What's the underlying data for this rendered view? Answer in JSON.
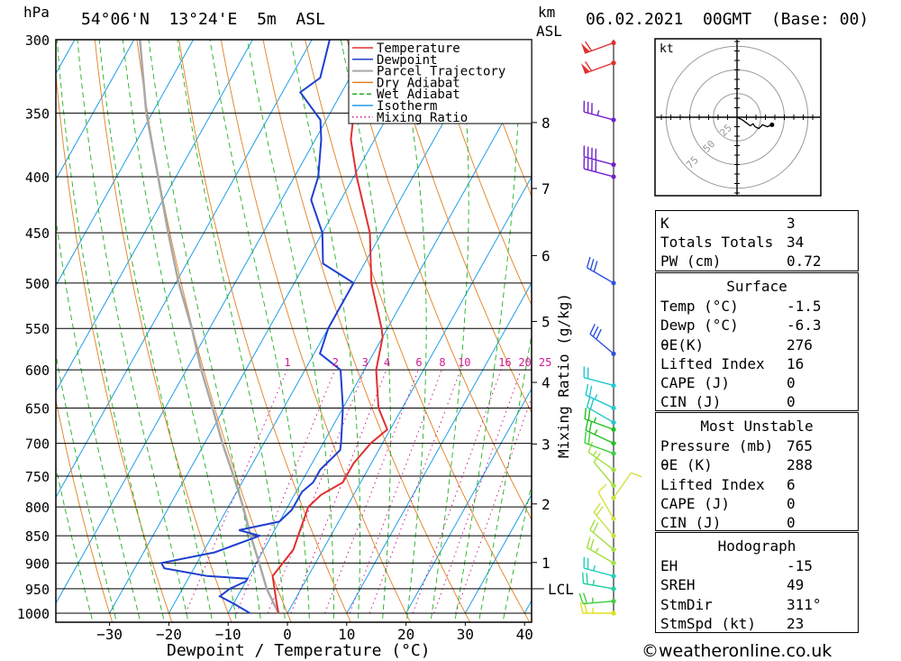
{
  "header": {
    "hpa_label": "hPa",
    "location": "54°06'N  13°24'E  5m  ASL",
    "km_label": "km",
    "asl_label": "ASL",
    "datetime": "06.02.2021  00GMT  (Base: 00)"
  },
  "chart_data": {
    "type": "line",
    "xlabel": "Dewpoint / Temperature (°C)",
    "ylabel": "hPa",
    "right_axis_label": "Mixing Ratio (g/kg)",
    "x_ticks": [
      -30,
      -20,
      -10,
      0,
      10,
      20,
      30,
      40
    ],
    "x_tick_labels": [
      "-30",
      "-20",
      "-10",
      "0",
      "10",
      "20",
      "30",
      "40"
    ],
    "pressure_levels": [
      300,
      350,
      400,
      450,
      500,
      550,
      600,
      650,
      700,
      750,
      800,
      850,
      900,
      950,
      1000
    ],
    "pressure_labels": [
      "300",
      "350",
      "400",
      "450",
      "500",
      "550",
      "600",
      "650",
      "700",
      "750",
      "800",
      "850",
      "900",
      "950",
      "1000"
    ],
    "height_km": [
      {
        "km": "8",
        "p": 357
      },
      {
        "km": "7",
        "p": 410
      },
      {
        "km": "6",
        "p": 472
      },
      {
        "km": "5",
        "p": 542
      },
      {
        "km": "4",
        "p": 616
      },
      {
        "km": "3",
        "p": 701
      },
      {
        "km": "2",
        "p": 795
      },
      {
        "km": "1",
        "p": 899
      }
    ],
    "lcl": {
      "label": "LCL",
      "p": 950
    },
    "mixing_ratio_labels": [
      "1",
      "2",
      "3",
      "4",
      "6",
      "8",
      "10",
      "16",
      "20",
      "25"
    ],
    "mixing_ratio_values": [
      1,
      2,
      3,
      4,
      6,
      8,
      10,
      16,
      20,
      25
    ],
    "legend": [
      {
        "name": "Temperature",
        "color": "#e03030"
      },
      {
        "name": "Dewpoint",
        "color": "#1f3fd0"
      },
      {
        "name": "Parcel Trajectory",
        "color": "#a8a8a8"
      },
      {
        "name": "Dry Adiabat",
        "color": "#e08020"
      },
      {
        "name": "Wet Adiabat",
        "color": "#20b020"
      },
      {
        "name": "Isotherm",
        "color": "#1e9ee8"
      },
      {
        "name": "Mixing Ratio",
        "color": "#d01890"
      }
    ],
    "series": [
      {
        "name": "Temperature",
        "points": [
          [
            1000,
            -1.5
          ],
          [
            975,
            -3
          ],
          [
            950,
            -4.5
          ],
          [
            925,
            -6
          ],
          [
            900,
            -5.5
          ],
          [
            875,
            -5
          ],
          [
            850,
            -5.5
          ],
          [
            825,
            -6
          ],
          [
            800,
            -6.5
          ],
          [
            780,
            -5.5
          ],
          [
            760,
            -3
          ],
          [
            730,
            -3
          ],
          [
            700,
            -2
          ],
          [
            680,
            -0.5
          ],
          [
            650,
            -4
          ],
          [
            600,
            -8
          ],
          [
            560,
            -10
          ],
          [
            550,
            -11
          ],
          [
            500,
            -17
          ],
          [
            450,
            -22
          ],
          [
            400,
            -29.5
          ],
          [
            370,
            -34
          ],
          [
            350,
            -36
          ],
          [
            330,
            -38
          ],
          [
            300,
            -42
          ]
        ]
      },
      {
        "name": "Dewpoint",
        "points": [
          [
            1000,
            -6.3
          ],
          [
            980,
            -10
          ],
          [
            975,
            -11
          ],
          [
            965,
            -13
          ],
          [
            950,
            -12
          ],
          [
            935,
            -10
          ],
          [
            930,
            -10
          ],
          [
            925,
            -17
          ],
          [
            910,
            -25
          ],
          [
            900,
            -26
          ],
          [
            880,
            -18
          ],
          [
            860,
            -14
          ],
          [
            850,
            -12
          ],
          [
            840,
            -16
          ],
          [
            825,
            -10
          ],
          [
            805,
            -9
          ],
          [
            790,
            -9
          ],
          [
            775,
            -9
          ],
          [
            760,
            -8
          ],
          [
            740,
            -8
          ],
          [
            720,
            -7
          ],
          [
            710,
            -6.5
          ],
          [
            700,
            -7
          ],
          [
            650,
            -10
          ],
          [
            600,
            -14
          ],
          [
            580,
            -19
          ],
          [
            550,
            -20
          ],
          [
            500,
            -20
          ],
          [
            480,
            -27
          ],
          [
            450,
            -30
          ],
          [
            420,
            -35
          ],
          [
            400,
            -36
          ],
          [
            370,
            -39
          ],
          [
            355,
            -41
          ],
          [
            335,
            -47
          ],
          [
            325,
            -45
          ],
          [
            300,
            -47
          ]
        ]
      },
      {
        "name": "Parcel Trajectory",
        "points": [
          [
            1000,
            -1.5
          ],
          [
            950,
            -5.8
          ],
          [
            900,
            -9.5
          ],
          [
            850,
            -13.5
          ],
          [
            800,
            -17.5
          ],
          [
            750,
            -22
          ],
          [
            700,
            -27
          ],
          [
            650,
            -32
          ],
          [
            600,
            -37.5
          ],
          [
            550,
            -43
          ],
          [
            500,
            -49.5
          ],
          [
            450,
            -56
          ],
          [
            400,
            -63
          ],
          [
            350,
            -71
          ],
          [
            300,
            -79
          ]
        ]
      }
    ],
    "wind_barbs": [
      {
        "p": 1000,
        "dir": 270,
        "kt": 25,
        "color": "#e0e020"
      },
      {
        "p": 975,
        "dir": 265,
        "kt": 25,
        "color": "#40d040"
      },
      {
        "p": 950,
        "dir": 280,
        "kt": 25,
        "color": "#20d0a0"
      },
      {
        "p": 925,
        "dir": 285,
        "kt": 25,
        "color": "#20d0c0"
      },
      {
        "p": 900,
        "dir": 300,
        "kt": 25,
        "color": "#a0e040"
      },
      {
        "p": 875,
        "dir": 310,
        "kt": 20,
        "color": "#a0e040"
      },
      {
        "p": 850,
        "dir": 320,
        "kt": 20,
        "color": "#c8e040"
      },
      {
        "p": 820,
        "dir": 330,
        "kt": 10,
        "color": "#d8e040"
      },
      {
        "p": 785,
        "dir": 35,
        "kt": 10,
        "color": "#d0e040"
      },
      {
        "p": 765,
        "dir": 320,
        "kt": 10,
        "color": "#a0e040"
      },
      {
        "p": 740,
        "dir": 305,
        "kt": 15,
        "color": "#a0e040"
      },
      {
        "p": 715,
        "dir": 290,
        "kt": 20,
        "color": "#40d040"
      },
      {
        "p": 700,
        "dir": 295,
        "kt": 25,
        "color": "#20c020"
      },
      {
        "p": 680,
        "dir": 290,
        "kt": 25,
        "color": "#20c020"
      },
      {
        "p": 670,
        "dir": 300,
        "kt": 20,
        "color": "#20c8c0"
      },
      {
        "p": 650,
        "dir": 295,
        "kt": 25,
        "color": "#20c8d0"
      },
      {
        "p": 620,
        "dir": 285,
        "kt": 20,
        "color": "#20c8d0"
      },
      {
        "p": 580,
        "dir": 310,
        "kt": 30,
        "color": "#3050e0"
      },
      {
        "p": 500,
        "dir": 300,
        "kt": 30,
        "color": "#3050e0"
      },
      {
        "p": 400,
        "dir": 285,
        "kt": 40,
        "color": "#7020d0"
      },
      {
        "p": 390,
        "dir": 285,
        "kt": 40,
        "color": "#7020d0"
      },
      {
        "p": 355,
        "dir": 285,
        "kt": 35,
        "color": "#7020d0"
      },
      {
        "p": 315,
        "dir": 250,
        "kt": 60,
        "color": "#e03030"
      },
      {
        "p": 302,
        "dir": 250,
        "kt": 60,
        "color": "#e03030"
      }
    ]
  },
  "hodograph": {
    "unit_label": "kt",
    "ring_labels": [
      "25",
      "50",
      "75"
    ],
    "points_kt": [
      [
        0,
        0
      ],
      [
        6,
        -3
      ],
      [
        10,
        -6
      ],
      [
        14,
        -9
      ],
      [
        17,
        -7
      ],
      [
        19,
        -10
      ],
      [
        23,
        -12
      ],
      [
        27,
        -8
      ],
      [
        32,
        -10
      ],
      [
        37,
        -8
      ]
    ]
  },
  "indices": {
    "general": [
      {
        "key": "K",
        "value": "3"
      },
      {
        "key": "Totals Totals",
        "value": "34"
      },
      {
        "key": "PW (cm)",
        "value": "0.72"
      }
    ],
    "surface": {
      "title": "Surface",
      "rows": [
        {
          "key": "Temp (°C)",
          "value": "-1.5"
        },
        {
          "key": "Dewp (°C)",
          "value": "-6.3"
        },
        {
          "key": "θE(K)",
          "value": "276"
        },
        {
          "key": "Lifted Index",
          "value": "16"
        },
        {
          "key": "CAPE (J)",
          "value": "0"
        },
        {
          "key": "CIN (J)",
          "value": "0"
        }
      ]
    },
    "most_unstable": {
      "title": "Most Unstable",
      "rows": [
        {
          "key": "Pressure (mb)",
          "value": "765"
        },
        {
          "key": "θE (K)",
          "value": "288"
        },
        {
          "key": "Lifted Index",
          "value": "6"
        },
        {
          "key": "CAPE (J)",
          "value": "0"
        },
        {
          "key": "CIN (J)",
          "value": "0"
        }
      ]
    },
    "hodograph": {
      "title": "Hodograph",
      "rows": [
        {
          "key": "EH",
          "value": "-15"
        },
        {
          "key": "SREH",
          "value": "49"
        },
        {
          "key": "StmDir",
          "value": "311°"
        },
        {
          "key": "StmSpd (kt)",
          "value": "23"
        }
      ]
    }
  },
  "footer": {
    "watermark": "©weatheronline.co.uk"
  }
}
